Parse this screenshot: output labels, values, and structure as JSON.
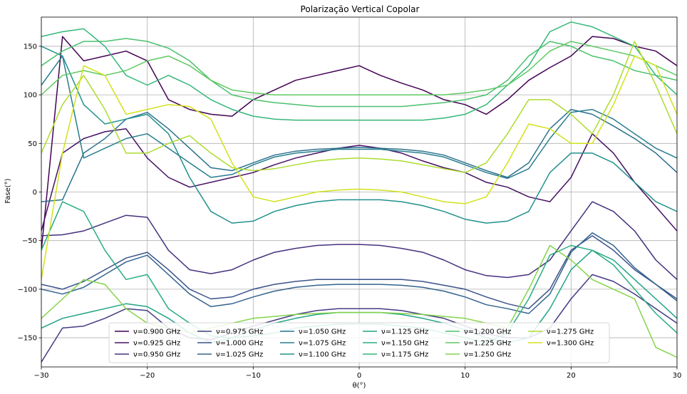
{
  "chart_data": {
    "type": "line",
    "title": "Polarização Vertical Copolar",
    "xlabel": "θ(°)",
    "ylabel": "Fase(°)",
    "xlim": [
      -30,
      30
    ],
    "ylim": [
      -180,
      180
    ],
    "xticks": [
      -30,
      -20,
      -10,
      0,
      10,
      20,
      30
    ],
    "xtick_labels": [
      "−30",
      "−20",
      "−10",
      "0",
      "10",
      "20",
      "30"
    ],
    "yticks": [
      -150,
      -100,
      -50,
      0,
      50,
      100,
      150
    ],
    "ytick_labels": [
      "−150",
      "−100",
      "−50",
      "0",
      "50",
      "100",
      "150"
    ],
    "grid": true,
    "legend_position": "lower-center",
    "legend_columns": 6,
    "series": [
      {
        "name": "ν=0.900 GHz",
        "color": "#440154",
        "x": [
          -30,
          -28,
          -26,
          -24,
          -22,
          -20,
          -18,
          -16,
          -14,
          -12,
          -10,
          -8,
          -6,
          -4,
          -2,
          0,
          2,
          4,
          6,
          8,
          10,
          12,
          14,
          16,
          18,
          20,
          22,
          24,
          26,
          28,
          30
        ],
        "y": [
          -60,
          160,
          135,
          140,
          145,
          135,
          95,
          85,
          80,
          78,
          95,
          105,
          115,
          120,
          125,
          130,
          120,
          112,
          105,
          95,
          90,
          80,
          95,
          115,
          128,
          140,
          160,
          158,
          150,
          145,
          130
        ]
      },
      {
        "name": "ν=0.925 GHz",
        "color": "#471063",
        "x": [
          -30,
          -28,
          -26,
          -24,
          -22,
          -20,
          -18,
          -16,
          -14,
          -12,
          -10,
          -8,
          -6,
          -4,
          -2,
          0,
          2,
          4,
          6,
          8,
          10,
          12,
          14,
          16,
          18,
          20,
          22,
          24,
          26,
          28,
          30
        ],
        "y": [
          -40,
          40,
          55,
          62,
          65,
          35,
          15,
          5,
          10,
          15,
          20,
          28,
          35,
          40,
          45,
          48,
          45,
          40,
          32,
          25,
          20,
          10,
          5,
          -5,
          -10,
          15,
          60,
          40,
          10,
          -15,
          -40
        ]
      },
      {
        "name": "ν=0.950 GHz",
        "color": "#46307e",
        "x": [
          -30,
          -28,
          -26,
          -24,
          -22,
          -20,
          -18,
          -16,
          -14,
          -12,
          -10,
          -8,
          -6,
          -4,
          -2,
          0,
          2,
          4,
          6,
          8,
          10,
          12,
          14,
          16,
          18,
          20,
          22,
          24,
          26,
          28,
          30
        ],
        "y": [
          -45,
          -44,
          -40,
          -32,
          -24,
          -26,
          -60,
          -80,
          -84,
          -80,
          -70,
          -62,
          -58,
          -55,
          -54,
          -54,
          -55,
          -58,
          -62,
          -70,
          -80,
          -86,
          -88,
          -85,
          -70,
          -40,
          -10,
          -20,
          -40,
          -70,
          -90
        ]
      },
      {
        "name": "ν=0.975 GHz",
        "color": "#443b84",
        "x": [
          -30,
          -28,
          -26,
          -24,
          -22,
          -20,
          -18,
          -16,
          -14,
          -12,
          -10,
          -8,
          -6,
          -4,
          -2,
          0,
          2,
          4,
          6,
          8,
          10,
          12,
          14,
          16,
          18,
          20,
          22,
          24,
          26,
          28,
          30
        ],
        "y": [
          -175,
          -140,
          -138,
          -130,
          -120,
          -122,
          -140,
          -150,
          -152,
          -145,
          -138,
          -132,
          -126,
          -122,
          -120,
          -120,
          -120,
          -122,
          -126,
          -130,
          -138,
          -146,
          -150,
          -150,
          -140,
          -110,
          -85,
          -92,
          -105,
          -120,
          -135
        ]
      },
      {
        "name": "ν=1.000 GHz",
        "color": "#3b528b",
        "x": [
          -30,
          -28,
          -26,
          -24,
          -22,
          -20,
          -18,
          -16,
          -14,
          -12,
          -10,
          -8,
          -6,
          -4,
          -2,
          0,
          2,
          4,
          6,
          8,
          10,
          12,
          14,
          16,
          18,
          20,
          22,
          24,
          26,
          28,
          30
        ],
        "y": [
          -95,
          -100,
          -92,
          -80,
          -68,
          -62,
          -80,
          -100,
          -110,
          -108,
          -100,
          -95,
          -92,
          -90,
          -90,
          -90,
          -90,
          -90,
          -92,
          -96,
          -100,
          -108,
          -115,
          -120,
          -100,
          -60,
          -45,
          -60,
          -80,
          -95,
          -110
        ]
      },
      {
        "name": "ν=1.025 GHz",
        "color": "#33638d",
        "x": [
          -30,
          -28,
          -26,
          -24,
          -22,
          -20,
          -18,
          -16,
          -14,
          -12,
          -10,
          -8,
          -6,
          -4,
          -2,
          0,
          2,
          4,
          6,
          8,
          10,
          12,
          14,
          16,
          18,
          20,
          22,
          24,
          26,
          28,
          30
        ],
        "y": [
          -100,
          -105,
          -98,
          -85,
          -72,
          -65,
          -85,
          -105,
          -118,
          -115,
          -108,
          -102,
          -98,
          -96,
          -95,
          -95,
          -95,
          -96,
          -98,
          -102,
          -108,
          -116,
          -120,
          -125,
          -105,
          -62,
          -42,
          -55,
          -78,
          -95,
          -112
        ]
      },
      {
        "name": "ν=1.050 GHz",
        "color": "#2c728e",
        "x": [
          -30,
          -28,
          -26,
          -24,
          -22,
          -20,
          -18,
          -16,
          -14,
          -12,
          -10,
          -8,
          -6,
          -4,
          -2,
          0,
          2,
          4,
          6,
          8,
          10,
          12,
          14,
          16,
          18,
          20,
          22,
          24,
          26,
          28,
          30
        ],
        "y": [
          -10,
          -8,
          40,
          55,
          75,
          82,
          65,
          45,
          25,
          22,
          30,
          38,
          42,
          44,
          45,
          46,
          45,
          44,
          42,
          38,
          30,
          22,
          15,
          30,
          65,
          85,
          80,
          68,
          55,
          40,
          20
        ]
      },
      {
        "name": "ν=1.075 GHz",
        "color": "#287d8e",
        "x": [
          -30,
          -28,
          -26,
          -24,
          -22,
          -20,
          -18,
          -16,
          -14,
          -12,
          -10,
          -8,
          -6,
          -4,
          -2,
          0,
          2,
          4,
          6,
          8,
          10,
          12,
          14,
          16,
          18,
          20,
          22,
          24,
          26,
          28,
          30
        ],
        "y": [
          110,
          140,
          35,
          45,
          55,
          60,
          45,
          30,
          15,
          18,
          28,
          36,
          40,
          42,
          44,
          44,
          44,
          42,
          40,
          36,
          28,
          20,
          14,
          24,
          55,
          82,
          85,
          75,
          60,
          45,
          35
        ]
      },
      {
        "name": "ν=1.100 GHz",
        "color": "#21918c",
        "x": [
          -30,
          -28,
          -26,
          -24,
          -22,
          -20,
          -18,
          -16,
          -14,
          -12,
          -10,
          -8,
          -6,
          -4,
          -2,
          0,
          2,
          4,
          6,
          8,
          10,
          12,
          14,
          16,
          18,
          20,
          22,
          24,
          26,
          28,
          30
        ],
        "y": [
          150,
          140,
          90,
          70,
          75,
          80,
          60,
          15,
          -20,
          -32,
          -30,
          -20,
          -14,
          -10,
          -8,
          -8,
          -8,
          -10,
          -14,
          -20,
          -28,
          -32,
          -30,
          -20,
          20,
          40,
          40,
          30,
          10,
          -10,
          -20
        ]
      },
      {
        "name": "ν=1.125 GHz",
        "color": "#20a386",
        "x": [
          -30,
          -28,
          -26,
          -24,
          -22,
          -20,
          -18,
          -16,
          -14,
          -12,
          -10,
          -8,
          -6,
          -4,
          -2,
          0,
          2,
          4,
          6,
          8,
          10,
          12,
          14,
          16,
          18,
          20,
          22,
          24,
          26,
          28,
          30
        ],
        "y": [
          -140,
          -130,
          -125,
          -120,
          -115,
          -118,
          -130,
          -145,
          -155,
          -150,
          -142,
          -135,
          -130,
          -126,
          -124,
          -124,
          -124,
          -126,
          -130,
          -135,
          -142,
          -150,
          -155,
          -150,
          -120,
          -80,
          -60,
          -70,
          -90,
          -110,
          -130
        ]
      },
      {
        "name": "ν=1.150 GHz",
        "color": "#27ad81",
        "x": [
          -30,
          -28,
          -26,
          -24,
          -22,
          -20,
          -18,
          -16,
          -14,
          -12,
          -10,
          -8,
          -6,
          -4,
          -2,
          0,
          2,
          4,
          6,
          8,
          10,
          12,
          14,
          16,
          18,
          20,
          22,
          24,
          26,
          28,
          30
        ],
        "y": [
          -60,
          -10,
          -20,
          -60,
          -90,
          -85,
          -120,
          -135,
          -148,
          -150,
          -148,
          -145,
          -140,
          -138,
          -136,
          -136,
          -136,
          -138,
          -140,
          -145,
          -150,
          -155,
          -145,
          -110,
          -65,
          -55,
          -60,
          -75,
          -100,
          -125,
          -145
        ]
      },
      {
        "name": "ν=1.175 GHz",
        "color": "#35b779",
        "x": [
          -30,
          -28,
          -26,
          -24,
          -22,
          -20,
          -18,
          -16,
          -14,
          -12,
          -10,
          -8,
          -6,
          -4,
          -2,
          0,
          2,
          4,
          6,
          8,
          10,
          12,
          14,
          16,
          18,
          20,
          22,
          24,
          26,
          28,
          30
        ],
        "y": [
          160,
          165,
          168,
          150,
          120,
          110,
          120,
          110,
          95,
          85,
          78,
          75,
          74,
          74,
          74,
          74,
          74,
          74,
          74,
          76,
          80,
          90,
          110,
          130,
          165,
          175,
          170,
          160,
          150,
          120,
          100
        ]
      },
      {
        "name": "ν=1.200 GHz",
        "color": "#4ac16d",
        "x": [
          -30,
          -28,
          -26,
          -24,
          -22,
          -20,
          -18,
          -16,
          -14,
          -12,
          -10,
          -8,
          -6,
          -4,
          -2,
          0,
          2,
          4,
          6,
          8,
          10,
          12,
          14,
          16,
          18,
          20,
          22,
          24,
          26,
          28,
          30
        ],
        "y": [
          130,
          145,
          155,
          155,
          158,
          155,
          148,
          135,
          115,
          100,
          95,
          92,
          90,
          88,
          88,
          88,
          88,
          88,
          90,
          92,
          95,
          100,
          115,
          140,
          155,
          150,
          140,
          135,
          125,
          120,
          115
        ]
      },
      {
        "name": "ν=1.225 GHz",
        "color": "#5ec962",
        "x": [
          -30,
          -28,
          -26,
          -24,
          -22,
          -20,
          -18,
          -16,
          -14,
          -12,
          -10,
          -8,
          -6,
          -4,
          -2,
          0,
          2,
          4,
          6,
          8,
          10,
          12,
          14,
          16,
          18,
          20,
          22,
          24,
          26,
          28,
          30
        ],
        "y": [
          100,
          120,
          125,
          120,
          125,
          135,
          140,
          130,
          115,
          105,
          102,
          100,
          100,
          100,
          100,
          100,
          100,
          100,
          100,
          100,
          102,
          105,
          110,
          125,
          145,
          155,
          150,
          145,
          140,
          130,
          120
        ]
      },
      {
        "name": "ν=1.250 GHz",
        "color": "#84d44b",
        "x": [
          -30,
          -28,
          -26,
          -24,
          -22,
          -20,
          -18,
          -16,
          -14,
          -12,
          -10,
          -8,
          -6,
          -4,
          -2,
          0,
          2,
          4,
          6,
          8,
          10,
          12,
          14,
          16,
          18,
          20,
          22,
          24,
          26,
          28,
          30
        ],
        "y": [
          -130,
          -110,
          -90,
          -95,
          -120,
          -135,
          -140,
          -145,
          -140,
          -135,
          -130,
          -128,
          -126,
          -125,
          -124,
          -124,
          -124,
          -125,
          -126,
          -128,
          -130,
          -135,
          -140,
          -100,
          -55,
          -70,
          -90,
          -100,
          -110,
          -160,
          -170
        ]
      },
      {
        "name": "ν=1.275 GHz",
        "color": "#addc30",
        "x": [
          -30,
          -28,
          -26,
          -24,
          -22,
          -20,
          -18,
          -16,
          -14,
          -12,
          -10,
          -8,
          -6,
          -4,
          -2,
          0,
          2,
          4,
          6,
          8,
          10,
          12,
          14,
          16,
          18,
          20,
          22,
          24,
          26,
          28,
          30
        ],
        "y": [
          40,
          90,
          120,
          85,
          40,
          40,
          50,
          58,
          40,
          25,
          22,
          24,
          28,
          32,
          34,
          35,
          34,
          32,
          28,
          24,
          20,
          30,
          60,
          95,
          95,
          80,
          60,
          100,
          155,
          110,
          60
        ]
      },
      {
        "name": "ν=1.300 GHz",
        "color": "#d2e21b",
        "x": [
          -30,
          -28,
          -26,
          -24,
          -22,
          -20,
          -18,
          -16,
          -14,
          -12,
          -10,
          -8,
          -6,
          -4,
          -2,
          0,
          2,
          4,
          6,
          8,
          10,
          12,
          14,
          16,
          18,
          20,
          22,
          24,
          26,
          28,
          30
        ],
        "y": [
          -90,
          40,
          130,
          120,
          80,
          85,
          90,
          88,
          75,
          30,
          -5,
          -10,
          -5,
          0,
          2,
          3,
          2,
          0,
          -5,
          -10,
          -12,
          -5,
          30,
          70,
          65,
          50,
          50,
          90,
          140,
          130,
          80
        ]
      }
    ]
  }
}
